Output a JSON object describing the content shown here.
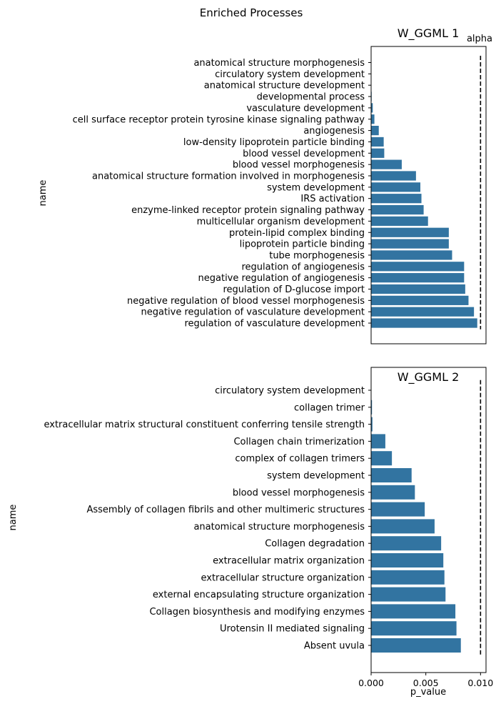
{
  "suptitle": "Enriched Processes",
  "chart_data": [
    {
      "type": "bar",
      "orientation": "horizontal",
      "title": "W_GGML 1",
      "xlabel": "",
      "ylabel": "name",
      "xlim": [
        0,
        0.0105
      ],
      "bar_color": "#3274a1",
      "reference_line": {
        "label": "alpha",
        "value": 0.01,
        "style": "dashed",
        "color": "#000000"
      },
      "categories": [
        "anatomical structure morphogenesis",
        "circulatory system development",
        "anatomical structure development",
        "developmental process",
        "vasculature development",
        "cell surface receptor protein tyrosine kinase signaling pathway",
        "angiogenesis",
        "low-density lipoprotein particle binding",
        "blood vessel development",
        "blood vessel morphogenesis",
        "anatomical structure formation involved in morphogenesis",
        "system development",
        "IRS activation",
        "enzyme-linked receptor protein signaling pathway",
        "multicellular organism development",
        "protein-lipid complex binding",
        "lipoprotein particle binding",
        "tube morphogenesis",
        "regulation of angiogenesis",
        "negative regulation of angiogenesis",
        "regulation of D-glucose import",
        "negative regulation of blood vessel morphogenesis",
        "negative regulation of vasculature development",
        "regulation of vasculature development"
      ],
      "values": [
        1e-05,
        2e-05,
        3e-05,
        5e-05,
        0.00015,
        0.0003,
        0.0007,
        0.00115,
        0.0012,
        0.0028,
        0.0041,
        0.0045,
        0.0046,
        0.0048,
        0.0052,
        0.0071,
        0.0071,
        0.0074,
        0.0085,
        0.0085,
        0.0086,
        0.0089,
        0.0094,
        0.0097
      ]
    },
    {
      "type": "bar",
      "orientation": "horizontal",
      "title": "W_GGML 2",
      "xlabel": "p_value",
      "ylabel": "name",
      "xlim": [
        0,
        0.0105
      ],
      "xticks": [
        "0.000",
        "0.005",
        "0.010"
      ],
      "bar_color": "#3274a1",
      "reference_line": {
        "value": 0.01,
        "style": "dashed",
        "color": "#000000"
      },
      "categories": [
        "circulatory system development",
        "collagen trimer",
        "extracellular matrix structural constituent conferring tensile strength",
        "Collagen chain trimerization",
        "complex of collagen trimers",
        "system development",
        "blood vessel morphogenesis",
        "Assembly of collagen fibrils and other multimeric structures",
        "anatomical structure morphogenesis",
        "Collagen degradation",
        "extracellular matrix organization",
        "extracellular structure organization",
        "external encapsulating structure organization",
        "Collagen biosynthesis and modifying enzymes",
        "Urotensin II mediated signaling",
        "Absent uvula"
      ],
      "values": [
        2e-05,
        8e-05,
        0.00012,
        0.0013,
        0.0019,
        0.0037,
        0.004,
        0.0049,
        0.0058,
        0.0064,
        0.0066,
        0.0067,
        0.0068,
        0.0077,
        0.0078,
        0.0082
      ]
    }
  ]
}
